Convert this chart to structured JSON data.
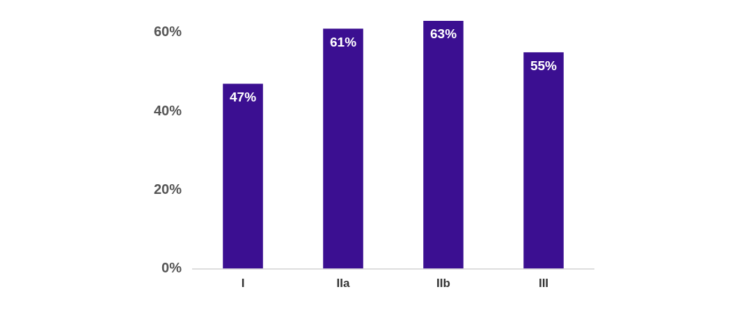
{
  "chart_data": {
    "type": "bar",
    "categories": [
      "I",
      "IIa",
      "IIb",
      "III"
    ],
    "values": [
      47,
      61,
      63,
      55
    ],
    "color": "#3b0f91",
    "ylim": [
      0,
      63
    ],
    "yticks": [
      {
        "value": 0,
        "label": "0%"
      },
      {
        "value": 20,
        "label": "20%"
      },
      {
        "value": 40,
        "label": "40%"
      },
      {
        "value": 60,
        "label": "60%"
      }
    ],
    "value_labels": [
      "47%",
      "61%",
      "63%",
      "55%"
    ],
    "grid": false,
    "legend": false
  }
}
